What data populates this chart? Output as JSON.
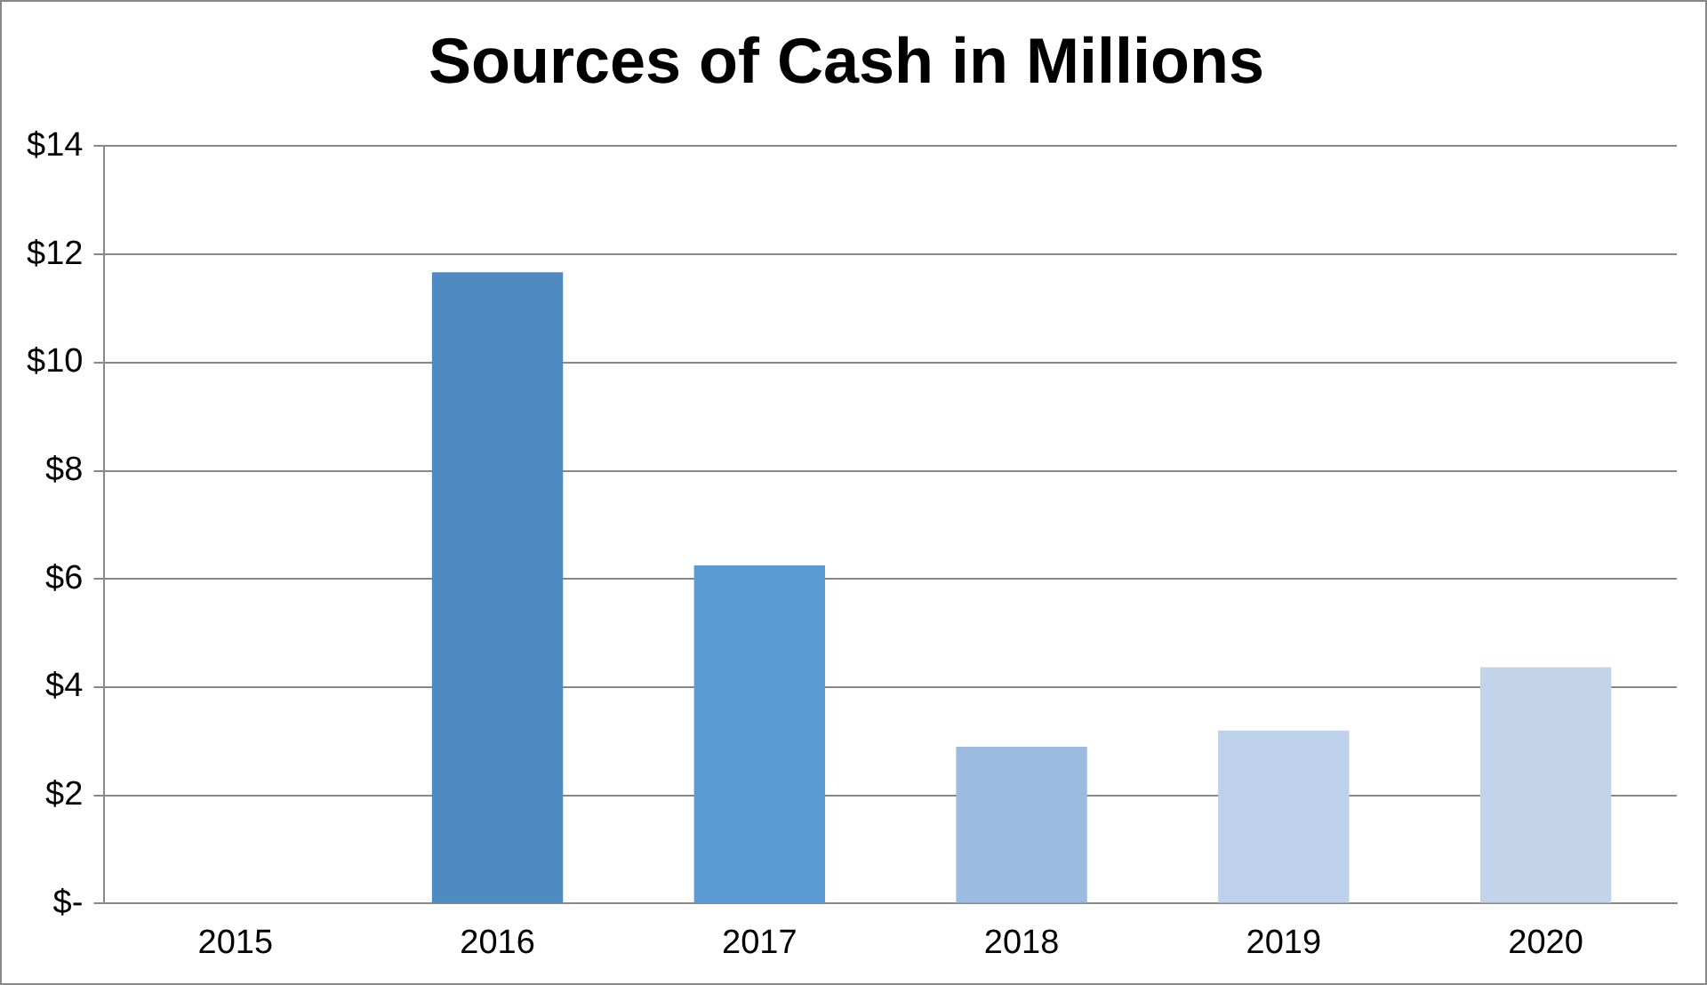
{
  "chart_data": {
    "type": "bar",
    "title": "Sources of Cash in Millions",
    "categories": [
      "2015",
      "2016",
      "2017",
      "2018",
      "2019",
      "2020"
    ],
    "values": [
      0,
      11.67,
      6.25,
      2.9,
      3.2,
      4.37
    ],
    "colors": [
      "#4f8bc0",
      "#4f8bc0",
      "#5b9bd5",
      "#9dbbe1",
      "#bdd1ea",
      "#c3d4ea"
    ],
    "ylim": [
      0,
      14
    ],
    "yticks": [
      {
        "value": 0,
        "label": "$-"
      },
      {
        "value": 2,
        "label": "$2"
      },
      {
        "value": 4,
        "label": "$4"
      },
      {
        "value": 6,
        "label": "$6"
      },
      {
        "value": 8,
        "label": "$8"
      },
      {
        "value": 10,
        "label": "$10"
      },
      {
        "value": 12,
        "label": "$12"
      },
      {
        "value": 14,
        "label": "$14"
      }
    ],
    "grid": "y"
  }
}
